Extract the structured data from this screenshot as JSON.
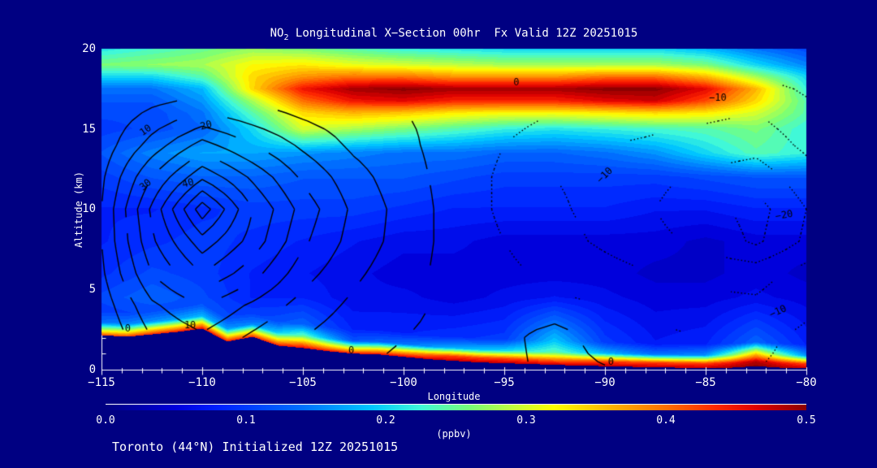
{
  "header": {
    "title_prefix": "NO",
    "title_sub": "2",
    "title_rest": " Longitudinal X−Section 00hr  Fx Valid 12Z 20251015"
  },
  "footer": {
    "text": "Toronto (44°N) Initialized 12Z 20251015"
  },
  "axes": {
    "xlabel": "Longitude",
    "ylabel": "Altitude (km)",
    "xticks": [
      "−115",
      "−110",
      "−105",
      "−100",
      "−95",
      "−90",
      "−85",
      "−80"
    ],
    "yticks": [
      "20",
      "15",
      "10",
      "5",
      "0"
    ]
  },
  "colorbar": {
    "labels": [
      "0.0",
      "0.1",
      "0.2",
      "0.3",
      "0.4",
      "0.5"
    ],
    "units": "(ppbv)"
  },
  "chart_data": {
    "type": "heatmap",
    "title": "NO2 Longitudinal X-Section 00hr Fx Valid 12Z 20251015",
    "xlabel": "Longitude",
    "ylabel": "Altitude (km)",
    "xlim": [
      -115,
      -80
    ],
    "ylim": [
      0,
      20
    ],
    "clim": [
      0,
      0.5
    ],
    "units": "ppbv",
    "background": "#000082",
    "quant_step": 0.0125,
    "field_lon_start": -115,
    "field_lon_step": 2.5,
    "field_levels": [
      {
        "agl": 0
      },
      {
        "agl": 0.3
      },
      {
        "agl": 0.8
      },
      {
        "agl": 1.5
      },
      {
        "alt": 4.5
      },
      {
        "alt": 6
      },
      {
        "alt": 8
      },
      {
        "alt": 10
      },
      {
        "alt": 12
      },
      {
        "alt": 13.5
      },
      {
        "alt": 15
      },
      {
        "alt": 16
      },
      {
        "alt": 16.75
      },
      {
        "alt": 17.5
      },
      {
        "alt": 18.25
      },
      {
        "alt": 19
      },
      {
        "alt": 20
      }
    ],
    "field_values": [
      [
        0.42,
        0.44,
        0.46,
        0.44,
        0.46,
        0.45,
        0.47,
        0.48,
        0.48,
        0.48,
        0.48,
        0.48,
        0.48,
        0.5,
        0.48
      ],
      [
        0.3,
        0.34,
        0.36,
        0.33,
        0.38,
        0.32,
        0.36,
        0.42,
        0.42,
        0.4,
        0.42,
        0.42,
        0.42,
        0.48,
        0.42
      ],
      [
        0.14,
        0.16,
        0.18,
        0.15,
        0.24,
        0.12,
        0.14,
        0.18,
        0.2,
        0.24,
        0.18,
        0.14,
        0.16,
        0.34,
        0.16
      ],
      [
        0.1,
        0.11,
        0.12,
        0.1,
        0.13,
        0.08,
        0.08,
        0.09,
        0.1,
        0.19,
        0.1,
        0.07,
        0.08,
        0.13,
        0.08
      ],
      [
        0.11,
        0.13,
        0.11,
        0.08,
        0.08,
        0.06,
        0.06,
        0.05,
        0.06,
        0.07,
        0.06,
        0.05,
        0.05,
        0.06,
        0.05
      ],
      [
        0.09,
        0.11,
        0.1,
        0.08,
        0.07,
        0.06,
        0.05,
        0.05,
        0.05,
        0.05,
        0.05,
        0.04,
        0.04,
        0.05,
        0.04
      ],
      [
        0.08,
        0.09,
        0.1,
        0.09,
        0.08,
        0.07,
        0.06,
        0.06,
        0.05,
        0.05,
        0.05,
        0.05,
        0.04,
        0.05,
        0.05
      ],
      [
        0.08,
        0.08,
        0.09,
        0.1,
        0.1,
        0.1,
        0.09,
        0.08,
        0.08,
        0.08,
        0.08,
        0.07,
        0.07,
        0.08,
        0.08
      ],
      [
        0.1,
        0.12,
        0.13,
        0.13,
        0.12,
        0.12,
        0.12,
        0.11,
        0.1,
        0.1,
        0.1,
        0.1,
        0.11,
        0.12,
        0.12
      ],
      [
        0.12,
        0.15,
        0.17,
        0.17,
        0.16,
        0.15,
        0.14,
        0.14,
        0.13,
        0.13,
        0.14,
        0.16,
        0.2,
        0.24,
        0.22
      ],
      [
        0.1,
        0.11,
        0.13,
        0.2,
        0.3,
        0.28,
        0.26,
        0.24,
        0.22,
        0.21,
        0.22,
        0.23,
        0.24,
        0.26,
        0.22
      ],
      [
        0.11,
        0.11,
        0.14,
        0.24,
        0.34,
        0.36,
        0.35,
        0.33,
        0.32,
        0.32,
        0.33,
        0.34,
        0.33,
        0.3,
        0.24
      ],
      [
        0.12,
        0.12,
        0.16,
        0.28,
        0.4,
        0.45,
        0.46,
        0.44,
        0.44,
        0.44,
        0.46,
        0.47,
        0.42,
        0.34,
        0.24
      ],
      [
        0.14,
        0.14,
        0.18,
        0.34,
        0.45,
        0.49,
        0.5,
        0.49,
        0.49,
        0.49,
        0.5,
        0.5,
        0.46,
        0.36,
        0.22
      ],
      [
        0.2,
        0.2,
        0.24,
        0.34,
        0.38,
        0.4,
        0.4,
        0.38,
        0.38,
        0.38,
        0.4,
        0.4,
        0.36,
        0.28,
        0.2
      ],
      [
        0.26,
        0.27,
        0.28,
        0.32,
        0.33,
        0.31,
        0.3,
        0.29,
        0.28,
        0.28,
        0.28,
        0.28,
        0.26,
        0.2,
        0.15
      ],
      [
        0.21,
        0.23,
        0.25,
        0.27,
        0.26,
        0.24,
        0.22,
        0.21,
        0.2,
        0.2,
        0.2,
        0.2,
        0.18,
        0.14,
        0.11
      ]
    ],
    "terrain": {
      "lon_start": -115,
      "lon_step": 1.25,
      "heights": [
        2.15,
        2.05,
        2.2,
        2.35,
        2.55,
        1.75,
        2.05,
        1.5,
        1.35,
        1.15,
        1.0,
        0.95,
        0.8,
        0.65,
        0.55,
        0.45,
        0.4,
        0.35,
        0.3,
        0.25,
        0.22,
        0.18,
        0.15,
        0.12,
        0.1,
        0.12,
        0.22,
        0.12,
        0.08
      ]
    },
    "contour_lon_start": -115,
    "contour_lon_step": 2.5,
    "contour_alts": [
      0,
      2,
      4,
      6,
      8,
      10,
      12,
      14,
      16,
      17,
      18,
      20
    ],
    "contour_values": [
      [
        -1,
        4,
        8,
        5,
        2,
        0,
        -1,
        -2,
        -2,
        2,
        0.5,
        -4,
        -5,
        -5,
        -4
      ],
      [
        0,
        10,
        14,
        9,
        5,
        2,
        0,
        -1,
        -2,
        3,
        -3,
        -4,
        -5,
        -6,
        -4
      ],
      [
        2,
        14,
        20,
        14,
        8,
        4,
        1,
        -1,
        -3,
        -4,
        -5,
        -6,
        -8,
        -9,
        -6
      ],
      [
        4,
        20,
        30,
        22,
        12,
        6,
        2,
        -2,
        -4,
        -6,
        -8,
        -10,
        -12,
        -12,
        -8
      ],
      [
        5,
        24,
        38,
        28,
        16,
        8,
        3,
        -2,
        -5,
        -8,
        -11,
        -14,
        -16,
        -21,
        -14
      ],
      [
        5,
        26,
        48,
        30,
        18,
        9,
        3,
        -2,
        -6,
        -9,
        -12,
        -15,
        -18,
        -22,
        -15
      ],
      [
        4,
        20,
        34,
        24,
        14,
        7,
        2,
        -2,
        -6,
        -10,
        -12,
        -14,
        -16,
        -18,
        -12
      ],
      [
        2,
        12,
        22,
        15,
        9,
        4,
        1,
        -2,
        -5,
        -8,
        -10,
        -11,
        -12,
        -13,
        -9
      ],
      [
        1,
        6,
        10,
        7,
        4,
        2,
        0,
        -1,
        -3,
        -5,
        -6,
        -8,
        -9,
        -10,
        -7
      ],
      [
        0,
        3,
        5,
        3,
        2,
        1,
        0,
        -1,
        -2,
        -3,
        -4,
        -5,
        -6,
        -8,
        -5
      ],
      [
        0,
        1,
        2,
        1,
        0,
        0,
        -1,
        -1,
        -2,
        -3,
        -3,
        -4,
        -5,
        -5,
        -4
      ],
      [
        0,
        0,
        1,
        0,
        0,
        -1,
        -1,
        -2,
        -2,
        -3,
        -3,
        -4,
        -4,
        -4,
        -3
      ]
    ],
    "contour_levels": [
      -25,
      -20,
      -15,
      -10,
      -5,
      0,
      5,
      10,
      15,
      20,
      25,
      30,
      35,
      40,
      45
    ],
    "contour_labels": [
      {
        "text": "10",
        "lon": -112.8,
        "alt": 14.9,
        "rot": -35
      },
      {
        "text": "20",
        "lon": -109.8,
        "alt": 15.2,
        "rot": -15
      },
      {
        "text": "30",
        "lon": -112.8,
        "alt": 11.5,
        "rot": -40
      },
      {
        "text": "40",
        "lon": -110.7,
        "alt": 11.6,
        "rot": -15
      },
      {
        "text": "0",
        "lon": -94.4,
        "alt": 17.9,
        "rot": 0
      },
      {
        "text": "−10",
        "lon": -84.4,
        "alt": 16.9,
        "rot": 0
      },
      {
        "text": "−10",
        "lon": -90.0,
        "alt": 12.1,
        "rot": -45
      },
      {
        "text": "−20",
        "lon": -81.1,
        "alt": 9.6,
        "rot": -10
      },
      {
        "text": "−10",
        "lon": -81.4,
        "alt": 3.6,
        "rot": -25
      },
      {
        "text": "0",
        "lon": -89.7,
        "alt": 0.45,
        "rot": 0
      },
      {
        "text": "0",
        "lon": -102.6,
        "alt": 1.15,
        "rot": 0
      },
      {
        "text": "10",
        "lon": -110.6,
        "alt": 2.75,
        "rot": 0
      },
      {
        "text": "0",
        "lon": -113.7,
        "alt": 2.55,
        "rot": 0
      }
    ],
    "colormap": [
      [
        0.0,
        0,
        0,
        130
      ],
      [
        0.1,
        0,
        0,
        220
      ],
      [
        0.16,
        0,
        32,
        255
      ],
      [
        0.28,
        0,
        112,
        255
      ],
      [
        0.38,
        0,
        200,
        255
      ],
      [
        0.45,
        64,
        248,
        216
      ],
      [
        0.52,
        120,
        255,
        120
      ],
      [
        0.58,
        192,
        255,
        64
      ],
      [
        0.64,
        255,
        255,
        0
      ],
      [
        0.72,
        255,
        180,
        0
      ],
      [
        0.8,
        255,
        110,
        0
      ],
      [
        0.87,
        255,
        40,
        0
      ],
      [
        0.93,
        220,
        0,
        0
      ],
      [
        1.0,
        140,
        0,
        0
      ]
    ]
  }
}
